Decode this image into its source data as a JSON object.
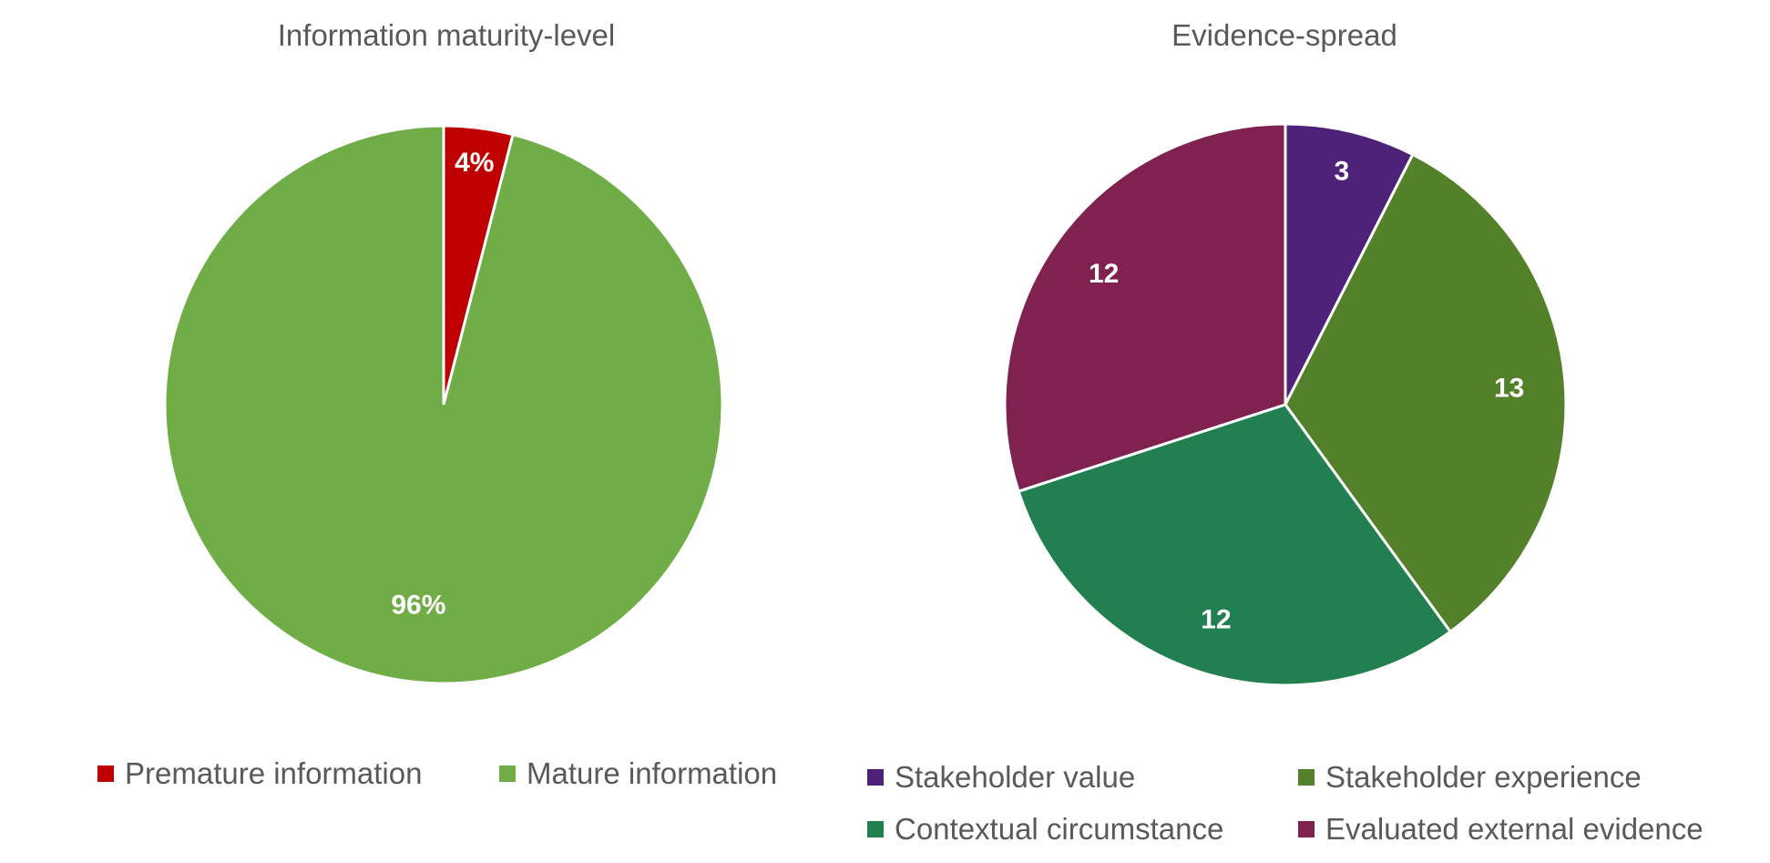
{
  "chart_data": [
    {
      "type": "pie",
      "title": "Information maturity-level",
      "labels_format": "percent",
      "slices": [
        {
          "name": "Premature information",
          "value": 4,
          "label": "4%",
          "color": "#C00000"
        },
        {
          "name": "Mature information",
          "value": 96,
          "label": "96%",
          "color": "#70AD47"
        }
      ],
      "legend_position": "bottom"
    },
    {
      "type": "pie",
      "title": "Evidence-spread",
      "slices": [
        {
          "name": "Stakeholder value",
          "value": 3,
          "label": "3",
          "color": "#4F227A"
        },
        {
          "name": "Stakeholder experience",
          "value": 13,
          "label": "13",
          "color": "#538129"
        },
        {
          "name": "Contextual circumstance",
          "value": 12,
          "label": "12",
          "color": "#228050"
        },
        {
          "name": "Evaluated external evidence",
          "value": 12,
          "label": "12",
          "color": "#7F2250"
        }
      ],
      "legend_position": "bottom"
    }
  ]
}
